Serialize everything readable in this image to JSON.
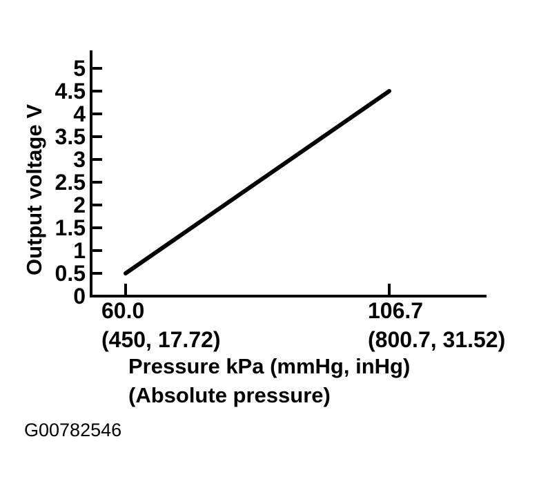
{
  "chart_data": {
    "type": "line",
    "ylabel": "Output voltage V",
    "xlabel_line1": "Pressure kPa (mmHg, inHg)",
    "xlabel_line2": "(Absolute pressure)",
    "y_ticks": [
      0,
      0.5,
      1,
      1.5,
      2,
      2.5,
      3,
      3.5,
      4,
      4.5,
      5
    ],
    "y_tick_labels": [
      "0",
      "0.5",
      "1",
      "1.5",
      "2",
      "2.5",
      "3",
      "3.5",
      "4",
      "4.5",
      "5"
    ],
    "ylim": [
      0,
      5.4
    ],
    "x_ticks": [
      {
        "value": 60.0,
        "label": "60.0",
        "sub_label": "(450, 17.72)"
      },
      {
        "value": 106.7,
        "label": "106.7",
        "sub_label": "(800.7, 31.52)"
      }
    ],
    "series": [
      {
        "name": "output_voltage_vs_pressure",
        "points": [
          [
            60.0,
            0.5
          ],
          [
            106.7,
            4.5
          ]
        ]
      }
    ],
    "grid": false,
    "legend": false,
    "line_color": "#000000",
    "axis_color": "#000000",
    "background_color": "#ffffff"
  },
  "figure": {
    "code": "G00782546"
  }
}
